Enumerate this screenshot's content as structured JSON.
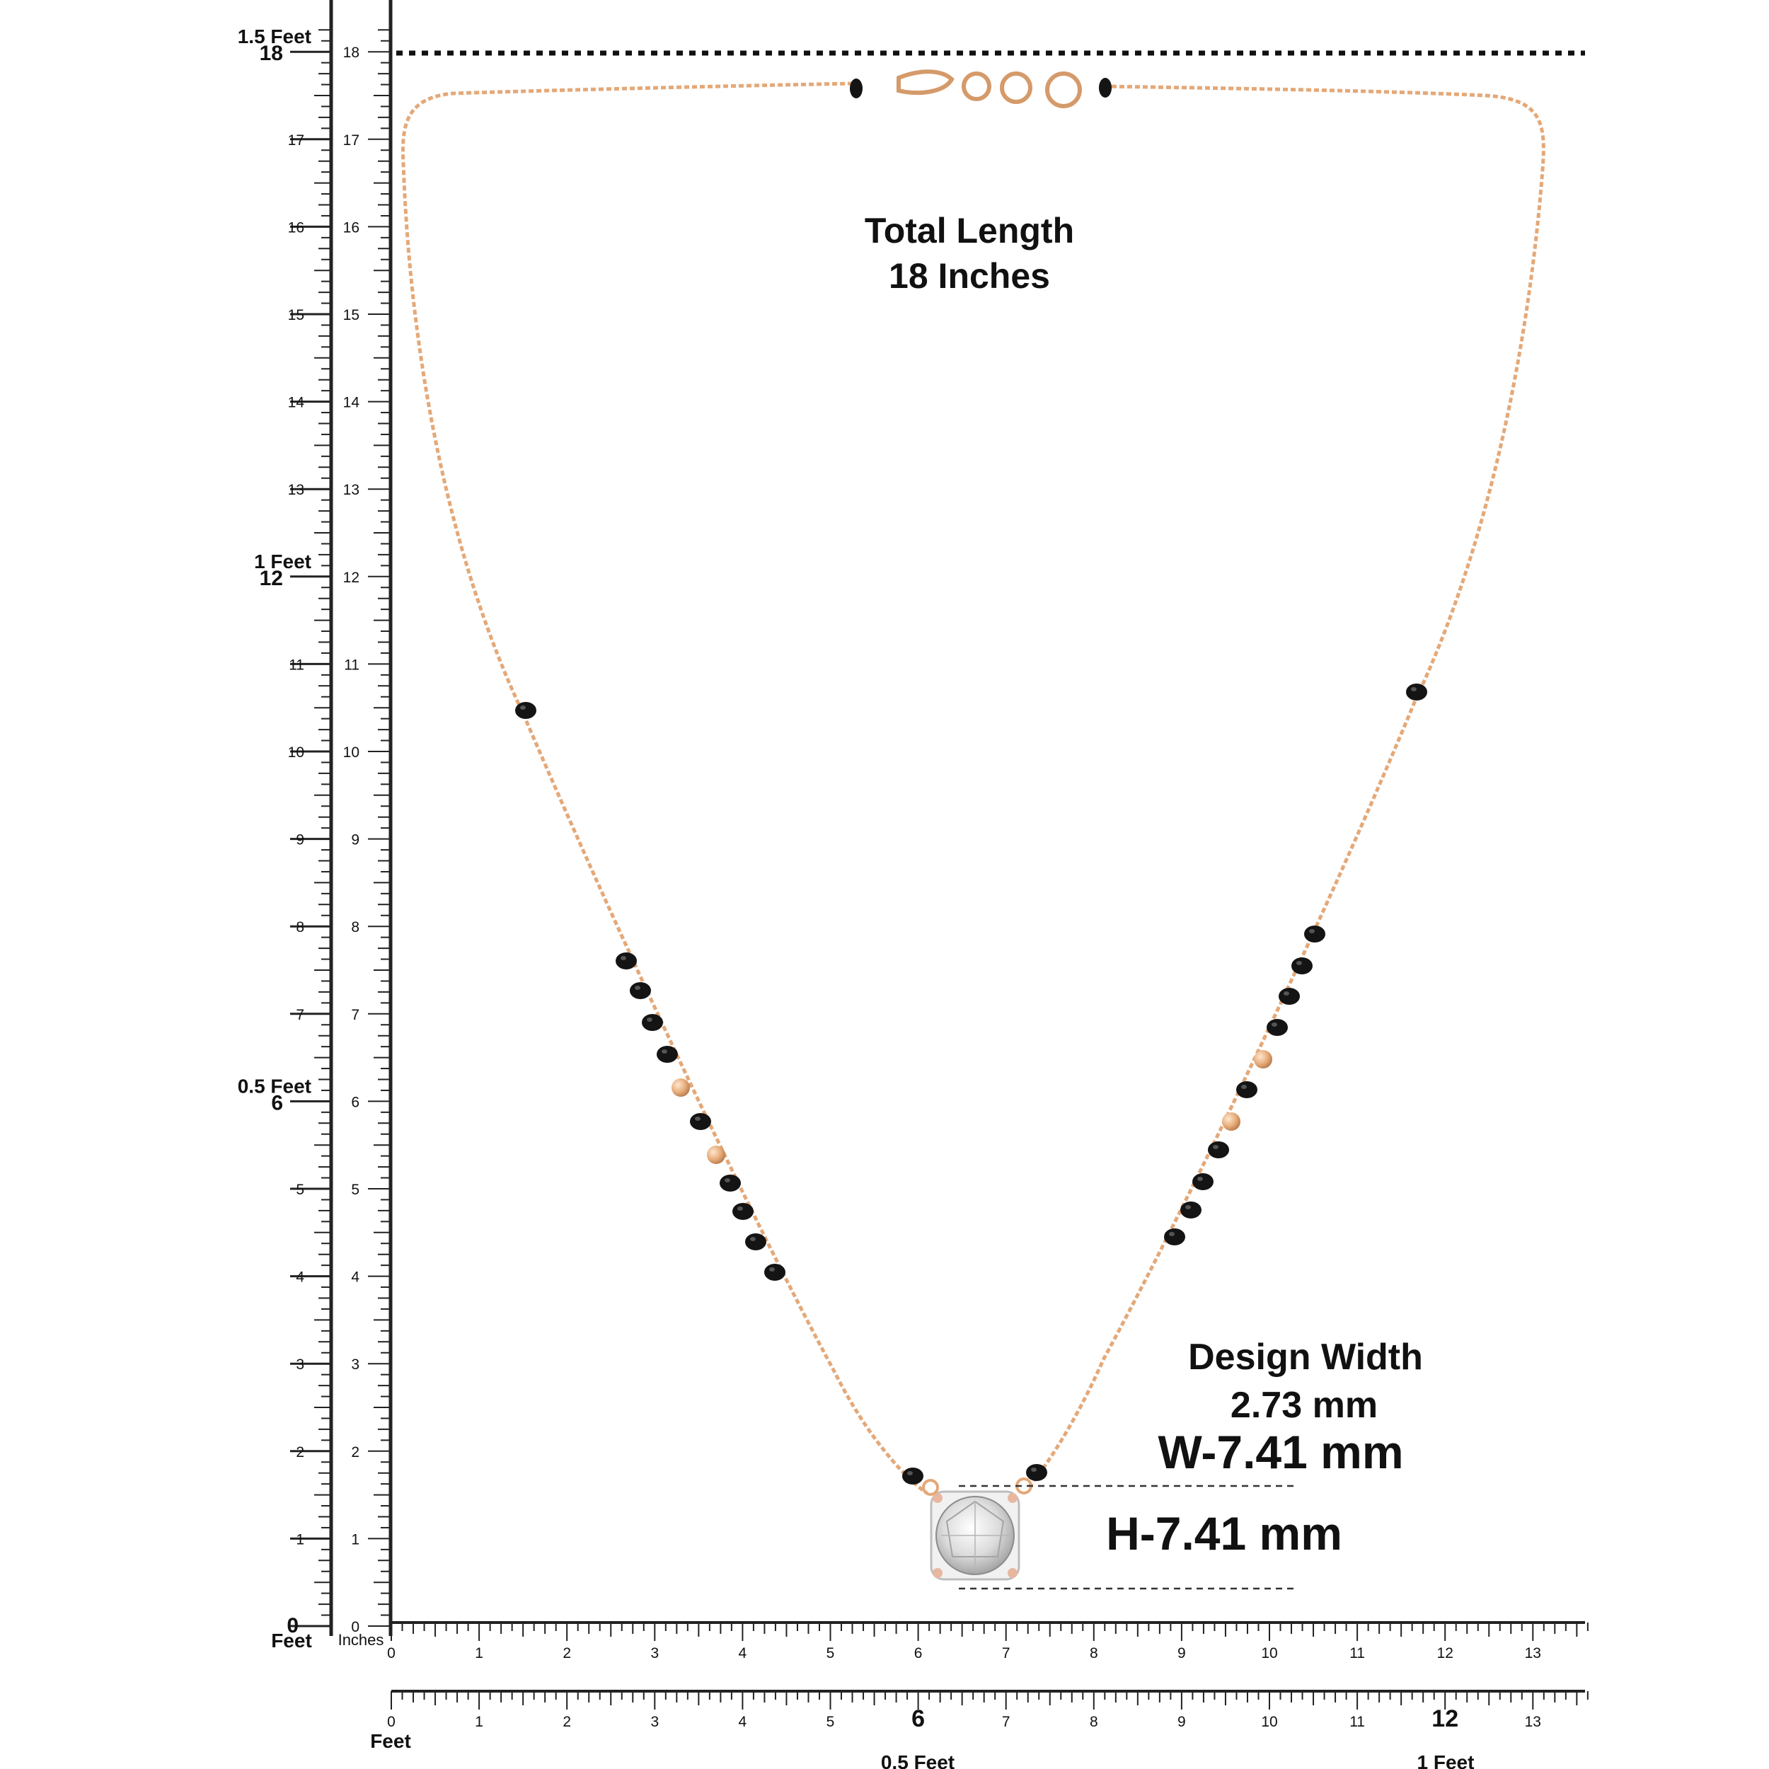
{
  "annotations": {
    "total_length_line1": "Total Length",
    "total_length_line2": "18 Inches",
    "design_width_line1": "Design Width",
    "design_width_line2": "2.73 mm",
    "pendant_width": "W-7.41 mm",
    "pendant_height": "H-7.41 mm"
  },
  "left_ruler": {
    "feet_labels": [
      {
        "text": "1.5 Feet",
        "value": 18
      },
      {
        "text": "1 Feet",
        "value": 12
      },
      {
        "text": "0.5 Feet",
        "value": 6
      }
    ],
    "foot_unit_label": "Feet",
    "inch_unit_label": "Inches",
    "inch_max": 18,
    "inch_labels": [
      "0",
      "1",
      "2",
      "3",
      "4",
      "5",
      "6",
      "7",
      "8",
      "9",
      "10",
      "11",
      "12",
      "13",
      "14",
      "15",
      "16",
      "17",
      "18"
    ]
  },
  "bottom_ruler": {
    "inch_labels": [
      "0",
      "1",
      "2",
      "3",
      "4",
      "5",
      "6",
      "7",
      "8",
      "9",
      "10",
      "11",
      "12",
      "13"
    ],
    "inch_max": 13
  },
  "feet_ruler": {
    "start_label": "0",
    "unit_label": "Feet",
    "inch_labels": [
      "1",
      "2",
      "3",
      "4",
      "5",
      "6",
      "7",
      "8",
      "9",
      "10",
      "11",
      "12",
      "13"
    ],
    "half_foot_label": "0.5 Feet",
    "one_foot_label": "1 Feet"
  },
  "colors": {
    "chain": "#e4a878",
    "bead": "#141414",
    "gold_ball": "#e9b07f",
    "ruler": "#222222",
    "dotted_line": "#111111"
  }
}
